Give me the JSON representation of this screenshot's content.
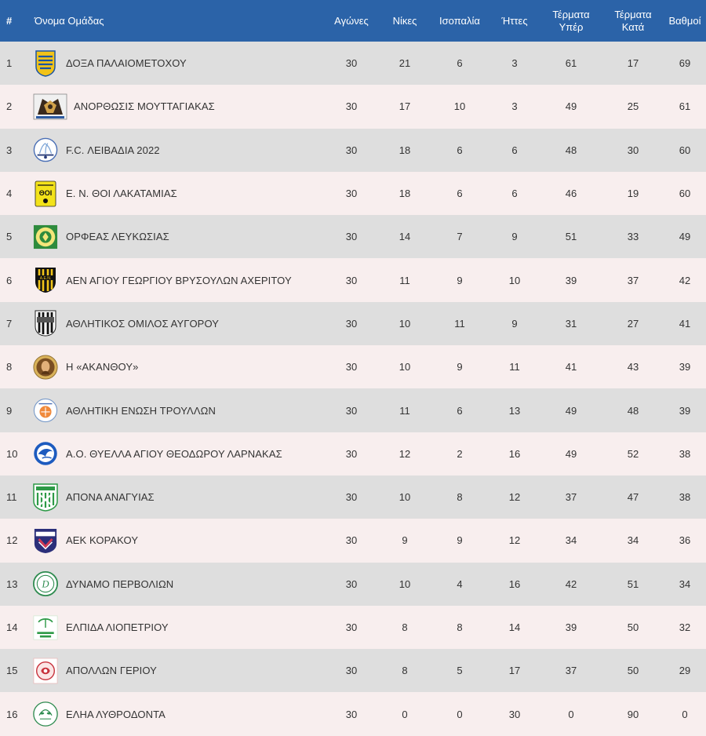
{
  "headers": {
    "pos": "#",
    "team": "Όνομα Ομάδας",
    "played": "Αγώνες",
    "wins": "Νίκες",
    "draws": "Ισοπαλία",
    "losses": "Ήττες",
    "gf_1": "Τέρματα",
    "gf_2": "Υπέρ",
    "ga_1": "Τέρματα",
    "ga_2": "Κατά",
    "points": "Βαθμοί"
  },
  "colors": {
    "header_bg": "#2b63a8",
    "row_odd": "#dedede",
    "row_even": "#f8eeee"
  },
  "rows": [
    {
      "pos": "1",
      "team": "ΔΟΞΑ ΠΑΛΑΙΟΜΕΤΟΧΟΥ",
      "logo": "doxa-crest-icon",
      "played": "30",
      "wins": "21",
      "draws": "6",
      "losses": "3",
      "gf": "61",
      "ga": "17",
      "points": "69"
    },
    {
      "pos": "2",
      "team": "ΑΝΟΡΘΩΣΙΣ ΜΟΥΤΤΑΓΙΑΚΑΣ",
      "logo": "anorthosis-crest-icon",
      "played": "30",
      "wins": "17",
      "draws": "10",
      "losses": "3",
      "gf": "49",
      "ga": "25",
      "points": "61"
    },
    {
      "pos": "3",
      "team": "F.C. ΛΕΙΒΑΔΙΑ 2022",
      "logo": "livadia-crest-icon",
      "played": "30",
      "wins": "18",
      "draws": "6",
      "losses": "6",
      "gf": "48",
      "ga": "30",
      "points": "60"
    },
    {
      "pos": "4",
      "team": "Ε. Ν. ΘΟΙ ΛΑΚΑΤΑΜΙΑΣ",
      "logo": "thoi-crest-icon",
      "played": "30",
      "wins": "18",
      "draws": "6",
      "losses": "6",
      "gf": "46",
      "ga": "19",
      "points": "60"
    },
    {
      "pos": "5",
      "team": "ΟΡΦΕΑΣ ΛΕΥΚΩΣΙΑΣ",
      "logo": "orfeas-crest-icon",
      "played": "30",
      "wins": "14",
      "draws": "7",
      "losses": "9",
      "gf": "51",
      "ga": "33",
      "points": "49"
    },
    {
      "pos": "6",
      "team": "ΑΕΝ ΑΓΙΟΥ ΓΕΩΡΓΙΟΥ ΒΡΥΣΟΥΛΩΝ ΑΧΕΡΙΤΟΥ",
      "logo": "aen-crest-icon",
      "played": "30",
      "wins": "11",
      "draws": "9",
      "losses": "10",
      "gf": "39",
      "ga": "37",
      "points": "42"
    },
    {
      "pos": "7",
      "team": "ΑΘΛΗΤΙΚΟΣ ΟΜΙΛΟΣ ΑΥΓΟΡΟΥ",
      "logo": "avgorou-crest-icon",
      "played": "30",
      "wins": "10",
      "draws": "11",
      "losses": "9",
      "gf": "31",
      "ga": "27",
      "points": "41"
    },
    {
      "pos": "8",
      "team": "Η «ΑΚΑΝΘΟΥ»",
      "logo": "akanthou-crest-icon",
      "played": "30",
      "wins": "10",
      "draws": "9",
      "losses": "11",
      "gf": "41",
      "ga": "43",
      "points": "39"
    },
    {
      "pos": "9",
      "team": "ΑΘΛΗΤΙΚΗ ΕΝΩΣΗ ΤΡΟΥΛΛΩΝ",
      "logo": "troullon-crest-icon",
      "played": "30",
      "wins": "11",
      "draws": "6",
      "losses": "13",
      "gf": "49",
      "ga": "48",
      "points": "39"
    },
    {
      "pos": "10",
      "team": "Α.Ο. ΘΥΕΛΛΑ ΑΓΙΟΥ ΘΕΟΔΩΡΟΥ ΛΑΡΝΑΚΑΣ",
      "logo": "thyella-crest-icon",
      "played": "30",
      "wins": "12",
      "draws": "2",
      "losses": "16",
      "gf": "49",
      "ga": "52",
      "points": "38"
    },
    {
      "pos": "11",
      "team": "ΑΠΟΝΑ ΑΝΑΓΥΙΑΣ",
      "logo": "apona-crest-icon",
      "played": "30",
      "wins": "10",
      "draws": "8",
      "losses": "12",
      "gf": "37",
      "ga": "47",
      "points": "38"
    },
    {
      "pos": "12",
      "team": "ΑΕΚ ΚΟΡΑΚΟΥ",
      "logo": "aek-korakou-crest-icon",
      "played": "30",
      "wins": "9",
      "draws": "9",
      "losses": "12",
      "gf": "34",
      "ga": "34",
      "points": "36"
    },
    {
      "pos": "13",
      "team": "ΔΥΝΑΜΟ ΠΕΡΒΟΛΙΩΝ",
      "logo": "dynamo-crest-icon",
      "played": "30",
      "wins": "10",
      "draws": "4",
      "losses": "16",
      "gf": "42",
      "ga": "51",
      "points": "34"
    },
    {
      "pos": "14",
      "team": "ΕΛΠΙΔΑ ΛΙΟΠΕΤΡΙΟΥ",
      "logo": "elpida-crest-icon",
      "played": "30",
      "wins": "8",
      "draws": "8",
      "losses": "14",
      "gf": "39",
      "ga": "50",
      "points": "32"
    },
    {
      "pos": "15",
      "team": "ΑΠΟΛΛΩΝ ΓΕΡΙΟΥ",
      "logo": "apollon-crest-icon",
      "played": "30",
      "wins": "8",
      "draws": "5",
      "losses": "17",
      "gf": "37",
      "ga": "50",
      "points": "29"
    },
    {
      "pos": "16",
      "team": "ΕΛΗΑ ΛΥΘΡΟΔΟΝΤΑ",
      "logo": "elia-crest-icon",
      "played": "30",
      "wins": "0",
      "draws": "0",
      "losses": "30",
      "gf": "0",
      "ga": "90",
      "points": "0"
    }
  ]
}
